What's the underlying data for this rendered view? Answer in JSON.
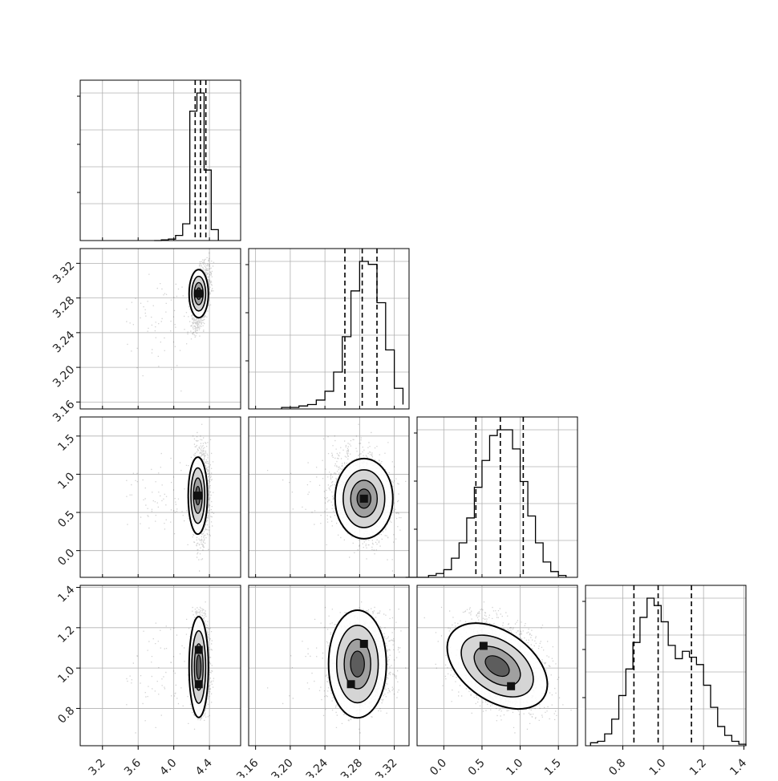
{
  "chart_data": {
    "type": "scatter",
    "variant": "corner",
    "grid": true,
    "parameters": [
      {
        "ticks": [
          3.2,
          3.6,
          4.0,
          4.4
        ],
        "tick_labels": [
          "3.2",
          "3.6",
          "4.0",
          "4.4"
        ],
        "range": [
          2.95,
          4.75
        ]
      },
      {
        "ticks": [
          3.16,
          3.2,
          3.24,
          3.28,
          3.32
        ],
        "tick_labels": [
          "3.16",
          "3.20",
          "3.24",
          "3.28",
          "3.32"
        ],
        "range": [
          3.152,
          3.337
        ]
      },
      {
        "ticks": [
          0.0,
          0.5,
          1.0,
          1.5
        ],
        "tick_labels": [
          "0.0",
          "0.5",
          "1.0",
          "1.5"
        ],
        "range": [
          -0.35,
          1.75
        ]
      },
      {
        "ticks": [
          0.8,
          1.0,
          1.2,
          1.4
        ],
        "tick_labels": [
          "0.8",
          "1.0",
          "1.2",
          "1.4"
        ],
        "range": [
          0.615,
          1.41
        ]
      }
    ],
    "quantiles": [
      [
        4.24,
        4.3,
        4.36
      ],
      [
        3.263,
        3.283,
        3.3
      ],
      [
        0.42,
        0.74,
        1.04
      ],
      [
        0.855,
        0.975,
        1.14
      ]
    ],
    "histograms": [
      {
        "bins": [
          3.78,
          3.86,
          3.94,
          4.02,
          4.1,
          4.18,
          4.26,
          4.34,
          4.42,
          4.5
        ],
        "counts": [
          0,
          1,
          2,
          7,
          23,
          178,
          203,
          97,
          15,
          0
        ]
      },
      {
        "bins": [
          3.19,
          3.2,
          3.21,
          3.22,
          3.23,
          3.24,
          3.25,
          3.26,
          3.27,
          3.28,
          3.29,
          3.3,
          3.31,
          3.32,
          3.33
        ],
        "counts": [
          1,
          1,
          2,
          3,
          6,
          12,
          25,
          49,
          80,
          100,
          98,
          72,
          40,
          14,
          3
        ]
      },
      {
        "bins": [
          -0.5,
          -0.4,
          -0.3,
          -0.2,
          -0.1,
          0.0,
          0.1,
          0.2,
          0.3,
          0.4,
          0.5,
          0.6,
          0.7,
          0.8,
          0.9,
          1.0,
          1.1,
          1.2,
          1.3,
          1.4,
          1.5,
          1.6
        ],
        "counts": [
          0,
          0,
          0,
          1,
          2,
          4,
          10,
          18,
          31,
          47,
          61,
          74,
          77,
          77,
          67,
          50,
          32,
          18,
          8,
          3,
          1
        ]
      },
      {
        "bins": [
          0.64,
          0.675,
          0.71,
          0.745,
          0.78,
          0.815,
          0.85,
          0.885,
          0.92,
          0.955,
          0.99,
          1.025,
          1.06,
          1.095,
          1.13,
          1.165,
          1.2,
          1.235,
          1.27,
          1.305,
          1.34,
          1.375,
          1.41
        ],
        "counts": [
          2,
          3,
          8,
          18,
          34,
          52,
          70,
          87,
          100,
          95,
          84,
          68,
          59,
          64,
          60,
          55,
          41,
          26,
          13,
          7,
          3,
          1
        ]
      }
    ],
    "peaks": {
      "1_0": [
        [
          4.28,
          3.285
        ]
      ],
      "2_0": [
        [
          4.27,
          0.72
        ]
      ],
      "2_1": [
        [
          3.285,
          0.68
        ]
      ],
      "3_0": [
        [
          4.28,
          1.09
        ],
        [
          4.28,
          0.92
        ]
      ],
      "3_1": [
        [
          3.285,
          1.12
        ],
        [
          3.27,
          0.92
        ]
      ],
      "3_2": [
        [
          0.52,
          1.11
        ],
        [
          0.88,
          0.91
        ]
      ]
    }
  }
}
